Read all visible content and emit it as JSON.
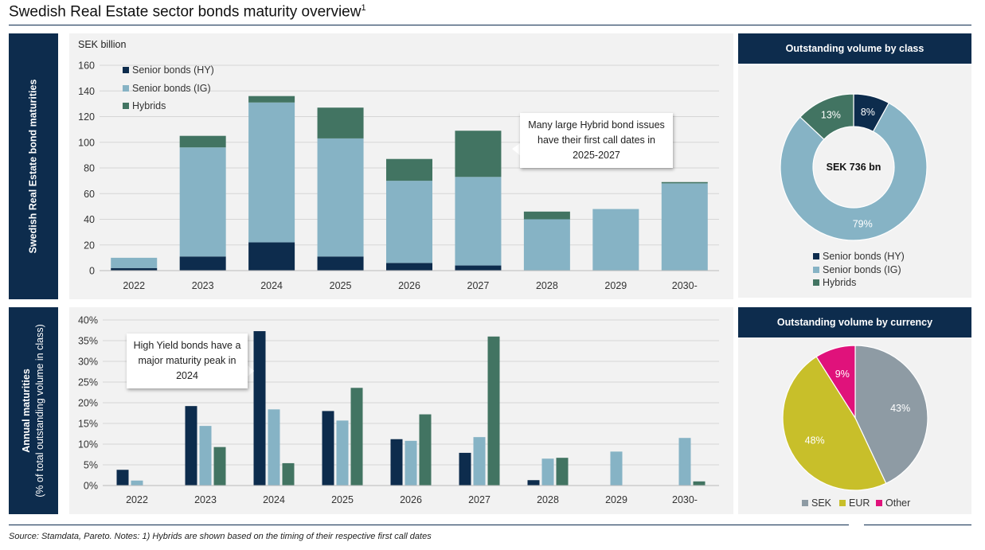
{
  "title": "Swedish Real Estate sector bonds maturity overview",
  "title_footnote": "1",
  "source": "Source: Stamdata, Pareto. Notes: 1) Hybrids are shown based on the timing of their respective first call dates",
  "colors": {
    "navy": "#0d2c4d",
    "light_blue": "#86b3c5",
    "green": "#427462",
    "olive": "#c8bf2a",
    "grey": "#8e9ba4",
    "magenta": "#e0127b"
  },
  "top_side_label": "Swedish Real Estate bond maturities",
  "bottom_side_label": {
    "line1": "Annual maturities",
    "line2": "(% of total outstanding volume in class)"
  },
  "chart_data": [
    {
      "type": "bar",
      "stacked": true,
      "ylabel": "SEK billion",
      "ylim": [
        0,
        160
      ],
      "yticks": [
        "0",
        "20",
        "40",
        "60",
        "80",
        "100",
        "120",
        "140",
        "160"
      ],
      "categories": [
        "2022",
        "2023",
        "2024",
        "2025",
        "2026",
        "2027",
        "2028",
        "2029",
        "2030-"
      ],
      "series": [
        {
          "name": "Senior bonds (HY)",
          "color": "#0d2c4d",
          "values": [
            2,
            11,
            22,
            11,
            6,
            4,
            0,
            0,
            0
          ]
        },
        {
          "name": "Senior bonds (IG)",
          "color": "#86b3c5",
          "values": [
            8,
            85,
            109,
            92,
            64,
            69,
            40,
            48,
            68
          ]
        },
        {
          "name": "Hybrids",
          "color": "#427462",
          "values": [
            0,
            9,
            5,
            24,
            17,
            36,
            6,
            0,
            1
          ]
        }
      ],
      "grid": true,
      "legend": "top-left",
      "annotation": "Many large Hybrid bond issues have their first call dates in 2025-2027"
    },
    {
      "type": "bar",
      "stacked": false,
      "ylim": [
        0,
        40
      ],
      "yticks": [
        "0%",
        "5%",
        "10%",
        "15%",
        "20%",
        "25%",
        "30%",
        "35%",
        "40%"
      ],
      "categories": [
        "2022",
        "2023",
        "2024",
        "2025",
        "2026",
        "2027",
        "2028",
        "2029",
        "2030-"
      ],
      "series": [
        {
          "name": "Senior bonds (HY)",
          "color": "#0d2c4d",
          "values": [
            3.8,
            19.2,
            37.3,
            18.0,
            11.2,
            7.9,
            1.3,
            0,
            0
          ]
        },
        {
          "name": "Senior bonds (IG)",
          "color": "#86b3c5",
          "values": [
            1.2,
            14.4,
            18.4,
            15.7,
            10.8,
            11.7,
            6.5,
            8.2,
            11.5
          ]
        },
        {
          "name": "Hybrids",
          "color": "#427462",
          "values": [
            0,
            9.3,
            5.4,
            23.6,
            17.2,
            36.0,
            6.7,
            0,
            1.0
          ]
        }
      ],
      "grid": true,
      "annotation": "High Yield bonds have a major maturity peak in 2024"
    },
    {
      "type": "pie",
      "donut": true,
      "title": "Outstanding volume by class",
      "center_label": "SEK 736 bn",
      "slices": [
        {
          "name": "Senior bonds (HY)",
          "value": 8,
          "label": "8%",
          "color": "#0d2c4d"
        },
        {
          "name": "Senior bonds (IG)",
          "value": 79,
          "label": "79%",
          "color": "#86b3c5"
        },
        {
          "name": "Hybrids",
          "value": 13,
          "label": "13%",
          "color": "#427462"
        }
      ],
      "legend": "bottom"
    },
    {
      "type": "pie",
      "donut": false,
      "title": "Outstanding volume by currency",
      "slices": [
        {
          "name": "SEK",
          "value": 43,
          "label": "43%",
          "color": "#8e9ba4"
        },
        {
          "name": "EUR",
          "value": 48,
          "label": "48%",
          "color": "#c8bf2a"
        },
        {
          "name": "Other",
          "value": 9,
          "label": "9%",
          "color": "#e0127b"
        }
      ],
      "legend": "bottom"
    }
  ]
}
